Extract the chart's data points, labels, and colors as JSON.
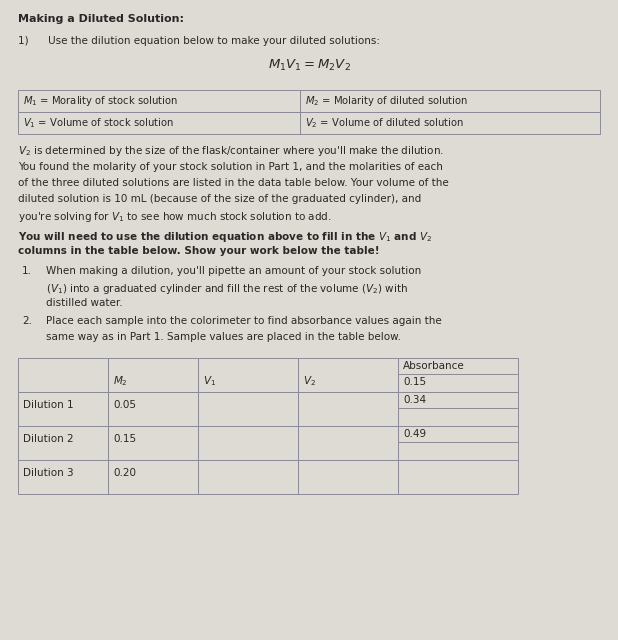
{
  "bg_color": "#dedad4",
  "title": "Making a Diluted Solution:",
  "step1_intro": "1)      Use the dilution equation below to make your diluted solutions:",
  "equation": "$M_1V_1 = M_2V_2$",
  "legend_cells": [
    [
      "$M_1$ = Morality of stock solution",
      "$M_2$ = Molarity of diluted solution"
    ],
    [
      "$V_1$ = Volume of stock solution",
      "$V_2$ = Volume of diluted solution"
    ]
  ],
  "para1": "$V_2$ is determined by the size of the flask/container where you'll make the dilution.",
  "para2_lines": [
    "You found the molarity of your stock solution in Part 1, and the molarities of each",
    "of the three diluted solutions are listed in the data table below. Your volume of the",
    "diluted solution is 10 mL (because of the size of the graduated cylinder), and",
    "you're solving for $V_1$ to see how much stock solution to add."
  ],
  "bold_lines": [
    "You will need to use the dilution equation above to fill in the $V_1$ and $V_2$",
    "columns in the table below. Show your work below the table!"
  ],
  "list1_lines": [
    "When making a dilution, you'll pipette an amount of your stock solution",
    "($V_1$) into a graduated cylinder and fill the rest of the volume ($V_2$) with",
    "distilled water."
  ],
  "list2_lines": [
    "Place each sample into the colorimeter to find absorbance values again the",
    "same way as in Part 1. Sample values are placed in the table below."
  ],
  "table_col_labels": [
    "",
    "$M_2$",
    "$V_1$",
    "$V_2$",
    "Absorbance"
  ],
  "table_data_rows": [
    [
      "Dilution 1",
      "0.05",
      "",
      ""
    ],
    [
      "Dilution 2",
      "0.15",
      "",
      ""
    ],
    [
      "Dilution 3",
      "0.20",
      "",
      ""
    ]
  ],
  "absorbance_vals": [
    "0.15",
    "0.34",
    "0.49"
  ],
  "text_color": "#2a2826",
  "border_color": "#8888aa",
  "fs": 7.5,
  "fs_title": 8.0,
  "fs_eq": 9.5
}
